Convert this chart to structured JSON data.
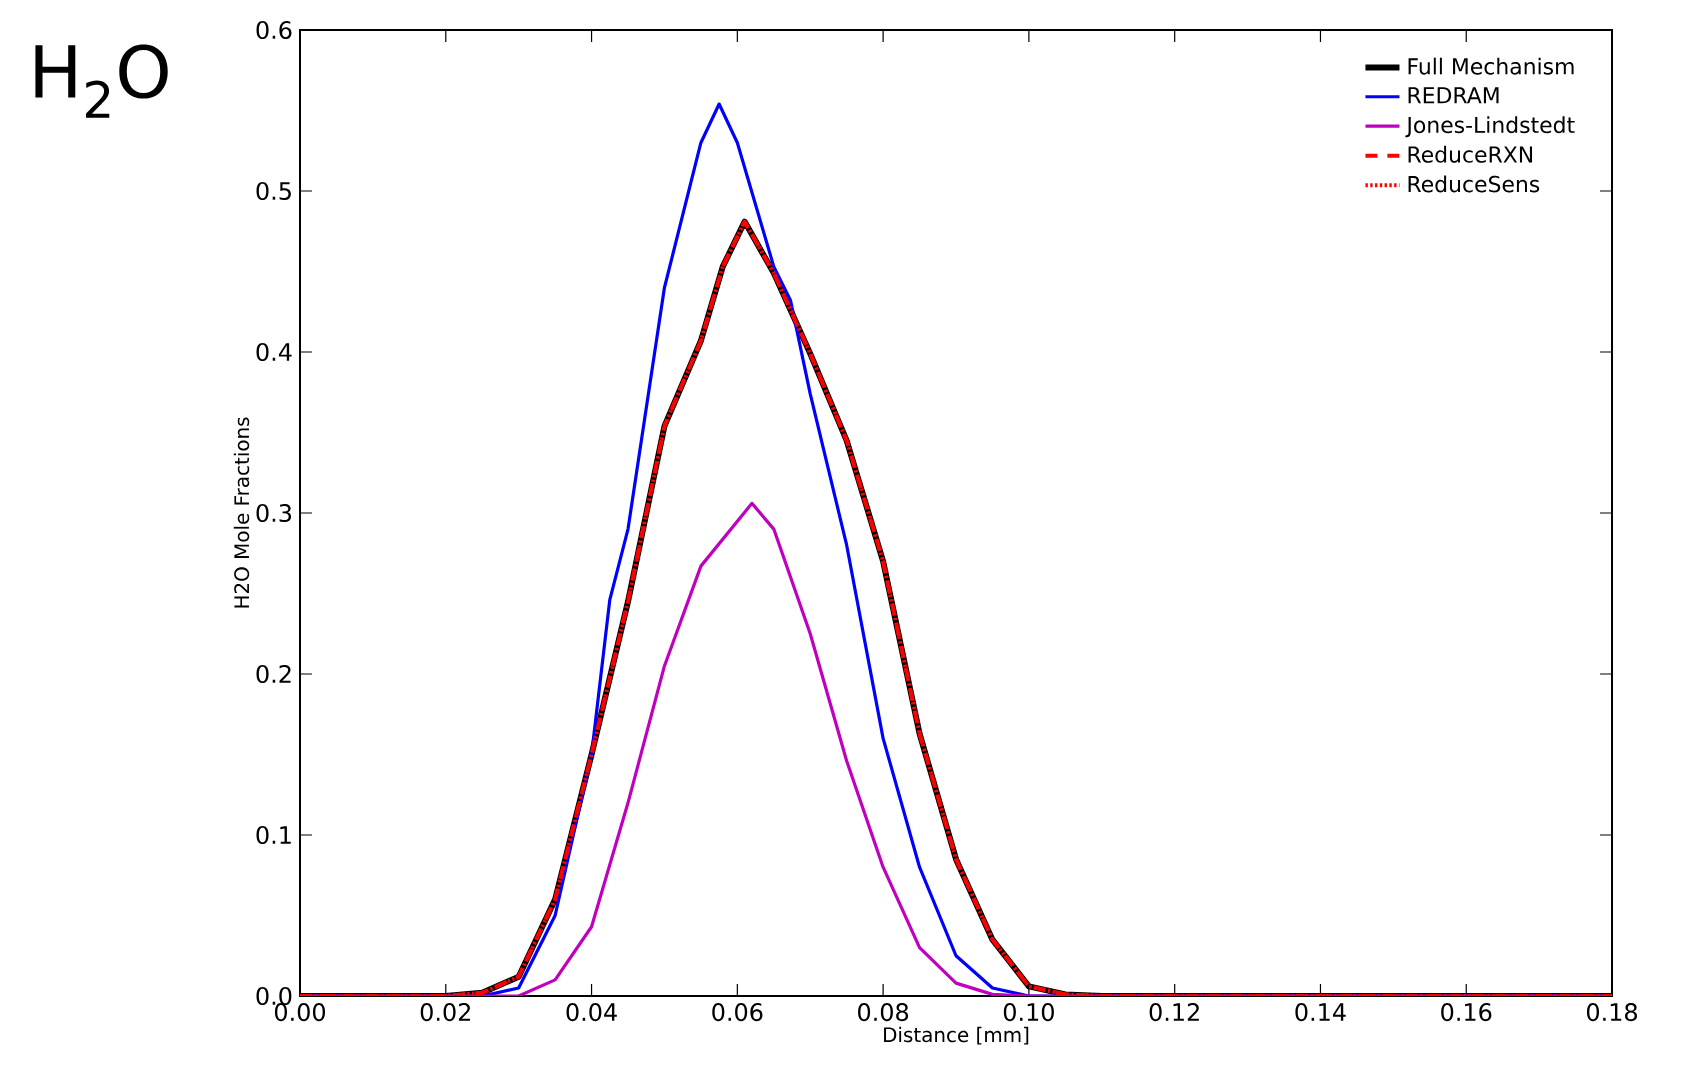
{
  "chart_data": {
    "type": "line",
    "title": "H$_{2}$O",
    "xlabel": "Distance [mm]",
    "ylabel": "H2O Mole Fractions",
    "xlim": [
      0,
      0.18
    ],
    "ylim": [
      0,
      0.6
    ],
    "xticks": [
      {
        "value": 0,
        "label": "0.00"
      },
      0.02,
      0.04,
      0.06,
      0.08,
      {
        "value": 0.1,
        "label": "0.10"
      },
      0.12,
      0.14,
      0.16,
      0.18
    ],
    "yticks": [
      {
        "value": 0,
        "label": "0.0"
      },
      0.1,
      0.2,
      0.3,
      0.4,
      0.5,
      0.6
    ],
    "grid": false,
    "legend": "top right",
    "marker": "none",
    "series": [
      {
        "name": "Full Mechanism",
        "color": "#000000",
        "line_style": "solid",
        "x": [
          0,
          0.02,
          0.025,
          0.03,
          0.035,
          0.04,
          0.045,
          0.05,
          0.055,
          0.058,
          0.061,
          0.065,
          0.07,
          0.075,
          0.08,
          0.085,
          0.09,
          0.095,
          0.1,
          0.105,
          0.11,
          0.18
        ],
        "values": [
          0,
          0,
          0.002,
          0.012,
          0.06,
          0.15,
          0.245,
          0.354,
          0.407,
          0.453,
          0.481,
          0.449,
          0.399,
          0.345,
          0.27,
          0.163,
          0.085,
          0.035,
          0.006,
          0.001,
          0,
          0
        ]
      },
      {
        "name": "REDRAM",
        "color": "#0000ff",
        "line_style": "solid",
        "x": [
          0,
          0.025,
          0.03,
          0.035,
          0.04,
          0.0425,
          0.045,
          0.05,
          0.055,
          0.0575,
          0.06,
          0.065,
          0.0673,
          0.07,
          0.075,
          0.08,
          0.085,
          0.09,
          0.095,
          0.1,
          0.18
        ],
        "values": [
          0,
          0,
          0.005,
          0.05,
          0.15,
          0.246,
          0.29,
          0.44,
          0.53,
          0.554,
          0.53,
          0.453,
          0.432,
          0.374,
          0.28,
          0.16,
          0.08,
          0.025,
          0.005,
          0,
          0
        ]
      },
      {
        "name": "Jones-Lindstedt",
        "color": "#bf00bf",
        "line_style": "solid",
        "x": [
          0,
          0.03,
          0.035,
          0.04,
          0.045,
          0.05,
          0.055,
          0.062,
          0.065,
          0.07,
          0.075,
          0.08,
          0.085,
          0.09,
          0.095,
          0.1,
          0.18
        ],
        "values": [
          0,
          0,
          0.01,
          0.043,
          0.12,
          0.205,
          0.267,
          0.306,
          0.29,
          0.225,
          0.146,
          0.08,
          0.03,
          0.008,
          0.001,
          0,
          0
        ]
      },
      {
        "name": "ReduceRXN",
        "color": "#ff0000",
        "line_style": "dashed",
        "x": [
          0,
          0.02,
          0.025,
          0.03,
          0.035,
          0.04,
          0.045,
          0.05,
          0.055,
          0.058,
          0.061,
          0.065,
          0.07,
          0.075,
          0.08,
          0.085,
          0.09,
          0.095,
          0.1,
          0.105,
          0.11,
          0.18
        ],
        "values": [
          0,
          0,
          0.002,
          0.012,
          0.06,
          0.15,
          0.245,
          0.354,
          0.407,
          0.453,
          0.481,
          0.449,
          0.399,
          0.345,
          0.27,
          0.163,
          0.085,
          0.035,
          0.006,
          0.001,
          0,
          0
        ]
      },
      {
        "name": "ReduceSens",
        "color": "#ff0000",
        "line_style": "dotted",
        "x": [
          0,
          0.02,
          0.025,
          0.03,
          0.035,
          0.04,
          0.045,
          0.05,
          0.055,
          0.058,
          0.061,
          0.065,
          0.07,
          0.075,
          0.08,
          0.085,
          0.09,
          0.095,
          0.1,
          0.105,
          0.11,
          0.18
        ],
        "values": [
          0,
          0,
          0.002,
          0.012,
          0.06,
          0.15,
          0.245,
          0.354,
          0.407,
          0.453,
          0.481,
          0.449,
          0.399,
          0.345,
          0.27,
          0.163,
          0.085,
          0.035,
          0.006,
          0.001,
          0,
          0
        ]
      }
    ]
  }
}
